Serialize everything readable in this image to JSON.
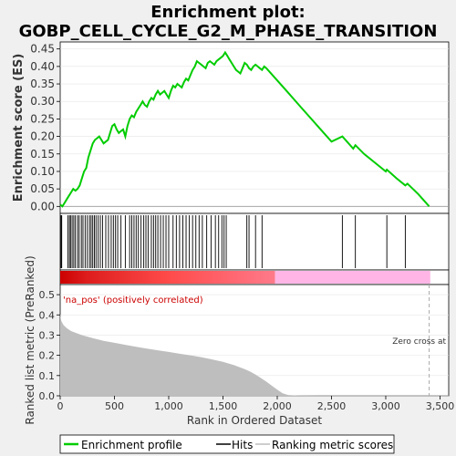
{
  "chart_data": {
    "type": "line",
    "title": "Enrichment plot:",
    "subtitle": "GOBP_CELL_CYCLE_G2_M_PHASE_TRANSITION",
    "colors": {
      "es_line": "#00cc00",
      "hits": "#000000",
      "metric_fill": "#bebebe",
      "pos_band": "#cc0000",
      "neg_band": "#ffb6e6",
      "background": "#f0f0f0",
      "zero_line": "#9a9a9a"
    },
    "top_panel": {
      "ylabel": "Enrichment score (ES)",
      "ylim": [
        -0.02,
        0.47
      ],
      "yticks": [
        "0.00",
        "0.05",
        "0.10",
        "0.15",
        "0.20",
        "0.25",
        "0.30",
        "0.35",
        "0.40",
        "0.45"
      ],
      "ytick_values": [
        0,
        0.05,
        0.1,
        0.15,
        0.2,
        0.25,
        0.3,
        0.35,
        0.4,
        0.45
      ],
      "series": [
        {
          "x": [
            0,
            20,
            40,
            60,
            80,
            100,
            120,
            140,
            160,
            180,
            200,
            220,
            240,
            260,
            280,
            300,
            320,
            340,
            360,
            380,
            400,
            420,
            440,
            460,
            480,
            500,
            520,
            540,
            560,
            580,
            600,
            620,
            640,
            660,
            680,
            700,
            720,
            740,
            760,
            780,
            800,
            820,
            840,
            860,
            880,
            900,
            920,
            940,
            960,
            980,
            1000,
            1020,
            1040,
            1060,
            1080,
            1100,
            1120,
            1140,
            1160,
            1180,
            1200,
            1220,
            1240,
            1260,
            1280,
            1300,
            1320,
            1340,
            1360,
            1380,
            1400,
            1420,
            1440,
            1460,
            1480,
            1500,
            1520,
            1540,
            1560,
            1580,
            1600,
            1620,
            1640,
            1660,
            1680,
            1700,
            1720,
            1740,
            1760,
            1780,
            1800,
            1820,
            1840,
            1860,
            1880,
            1900,
            2000,
            2100,
            2200,
            2300,
            2400,
            2500,
            2600,
            2700,
            2720,
            2800,
            2900,
            3000,
            3010,
            3100,
            3180,
            3200,
            3300,
            3400
          ],
          "y": [
            0.005,
            0.0,
            0.01,
            0.02,
            0.03,
            0.04,
            0.05,
            0.045,
            0.05,
            0.06,
            0.08,
            0.1,
            0.11,
            0.14,
            0.16,
            0.18,
            0.19,
            0.195,
            0.2,
            0.19,
            0.18,
            0.185,
            0.19,
            0.21,
            0.23,
            0.235,
            0.22,
            0.21,
            0.215,
            0.22,
            0.2,
            0.23,
            0.25,
            0.26,
            0.255,
            0.27,
            0.28,
            0.29,
            0.3,
            0.29,
            0.285,
            0.3,
            0.31,
            0.305,
            0.32,
            0.33,
            0.32,
            0.325,
            0.33,
            0.32,
            0.31,
            0.33,
            0.345,
            0.34,
            0.35,
            0.345,
            0.34,
            0.355,
            0.365,
            0.36,
            0.375,
            0.39,
            0.4,
            0.415,
            0.41,
            0.405,
            0.4,
            0.395,
            0.41,
            0.415,
            0.41,
            0.405,
            0.415,
            0.42,
            0.425,
            0.43,
            0.44,
            0.43,
            0.42,
            0.41,
            0.4,
            0.39,
            0.385,
            0.38,
            0.395,
            0.41,
            0.405,
            0.395,
            0.39,
            0.4,
            0.405,
            0.4,
            0.395,
            0.39,
            0.4,
            0.395,
            0.36,
            0.325,
            0.29,
            0.255,
            0.22,
            0.185,
            0.2,
            0.165,
            0.175,
            0.15,
            0.125,
            0.1,
            0.105,
            0.08,
            0.06,
            0.065,
            0.035,
            0.0
          ]
        }
      ]
    },
    "hits": [
      8,
      14,
      70,
      85,
      95,
      110,
      125,
      140,
      160,
      175,
      195,
      210,
      230,
      250,
      270,
      285,
      300,
      315,
      330,
      350,
      370,
      390,
      420,
      445,
      470,
      490,
      510,
      530,
      560,
      600,
      640,
      660,
      680,
      700,
      720,
      745,
      770,
      790,
      810,
      840,
      860,
      880,
      900,
      925,
      950,
      975,
      1000,
      1040,
      1070,
      1100,
      1130,
      1160,
      1190,
      1220,
      1250,
      1280,
      1310,
      1350,
      1390,
      1430,
      1460,
      1490,
      1510,
      1530,
      1720,
      1740,
      1800,
      1860,
      2600,
      2720,
      3010,
      3180
    ],
    "bottom_panel": {
      "ylabel": "Ranked list metric (PreRanked)",
      "xlabel": "Rank in Ordered Dataset",
      "ylim": [
        0,
        0.55
      ],
      "yticks": [
        "0.0",
        "0.1",
        "0.2",
        "0.3",
        "0.4",
        "0.5"
      ],
      "ytick_values": [
        0,
        0.1,
        0.2,
        0.3,
        0.4,
        0.5
      ],
      "xticks": [
        "0",
        "500",
        "1,000",
        "1,500",
        "2,000",
        "2,500",
        "3,000",
        "3,500"
      ],
      "xtick_values": [
        0,
        500,
        1000,
        1500,
        2000,
        2500,
        3000,
        3500
      ],
      "xlim": [
        0,
        3580
      ],
      "n_genes": 3410,
      "pos_label": "'na_pos' (positively correlated)",
      "zero_cross_label": "Zero cross at",
      "zero_cross_rank": 3400,
      "metric_x": [
        0,
        10,
        30,
        60,
        100,
        200,
        300,
        400,
        500,
        600,
        700,
        800,
        900,
        1000,
        1100,
        1200,
        1300,
        1400,
        1500,
        1600,
        1700,
        1750,
        1800,
        1850,
        1900,
        1950,
        2000,
        2050,
        2100,
        2200,
        2400,
        3000,
        3410
      ],
      "metric_y": [
        0.4,
        0.37,
        0.35,
        0.335,
        0.32,
        0.3,
        0.285,
        0.272,
        0.262,
        0.252,
        0.242,
        0.233,
        0.225,
        0.217,
        0.208,
        0.2,
        0.191,
        0.18,
        0.168,
        0.152,
        0.132,
        0.12,
        0.105,
        0.088,
        0.07,
        0.05,
        0.03,
        0.012,
        0.004,
        0.001,
        0.0,
        0.0,
        0.0
      ],
      "pos_band_end": 1980
    },
    "legend": [
      "Enrichment profile",
      "Hits",
      "Ranking metric scores"
    ]
  }
}
